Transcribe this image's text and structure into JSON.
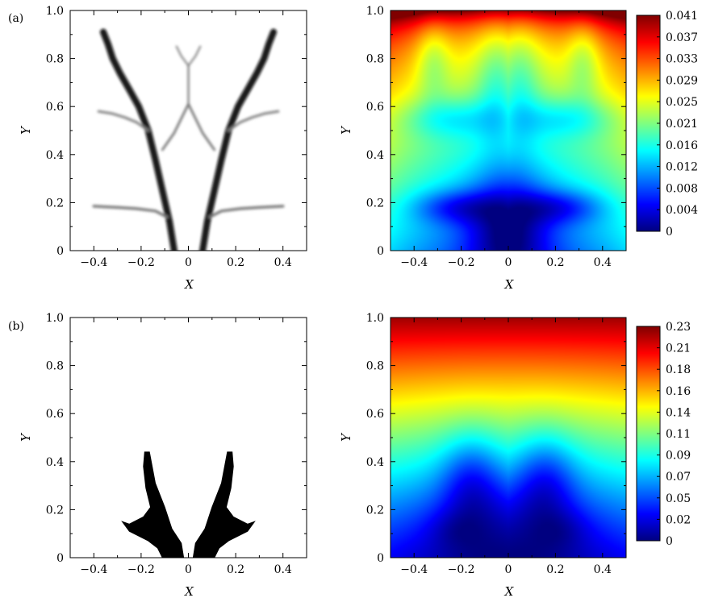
{
  "chart_data": [
    {
      "panel": "(a)",
      "type": "heatmap",
      "subtype": "topology-density",
      "xlabel": "X",
      "ylabel": "Y",
      "xlim": [
        -0.5,
        0.5
      ],
      "ylim": [
        0,
        1
      ],
      "xticks": [
        "−0.4",
        "−0.2",
        "0",
        "0.2",
        "0.4"
      ],
      "yticks": [
        "0",
        "0.2",
        "0.4",
        "0.6",
        "0.8",
        "1.0"
      ],
      "colormap": "grayscale",
      "branches": [
        {
          "x": [
            -0.06,
            -0.08,
            -0.11,
            -0.14,
            -0.17,
            -0.21,
            -0.25,
            -0.29,
            -0.32,
            -0.34,
            -0.36
          ],
          "y": [
            0,
            0.12,
            0.25,
            0.38,
            0.5,
            0.6,
            0.67,
            0.74,
            0.8,
            0.86,
            0.91
          ],
          "w": 0.028,
          "d": 0.95
        },
        {
          "x": [
            0.06,
            0.08,
            0.11,
            0.14,
            0.17,
            0.21,
            0.25,
            0.29,
            0.32,
            0.34,
            0.36
          ],
          "y": [
            0,
            0.12,
            0.25,
            0.38,
            0.5,
            0.6,
            0.67,
            0.74,
            0.8,
            0.86,
            0.91
          ],
          "w": 0.028,
          "d": 0.95
        },
        {
          "x": [
            -0.09,
            -0.14,
            -0.22,
            -0.3,
            -0.4
          ],
          "y": [
            0.14,
            0.165,
            0.175,
            0.18,
            0.185
          ],
          "w": 0.012,
          "d": 0.55
        },
        {
          "x": [
            0.09,
            0.14,
            0.22,
            0.3,
            0.4
          ],
          "y": [
            0.14,
            0.165,
            0.175,
            0.18,
            0.185
          ],
          "w": 0.012,
          "d": 0.55
        },
        {
          "x": [
            -0.17,
            -0.22,
            -0.27,
            -0.32,
            -0.38
          ],
          "y": [
            0.5,
            0.535,
            0.555,
            0.57,
            0.58
          ],
          "w": 0.011,
          "d": 0.5
        },
        {
          "x": [
            0.17,
            0.22,
            0.27,
            0.32,
            0.38
          ],
          "y": [
            0.5,
            0.535,
            0.555,
            0.57,
            0.58
          ],
          "w": 0.011,
          "d": 0.5
        },
        {
          "x": [
            -0.11,
            -0.06,
            -0.02,
            0.0
          ],
          "y": [
            0.42,
            0.49,
            0.57,
            0.61
          ],
          "w": 0.01,
          "d": 0.55
        },
        {
          "x": [
            0.11,
            0.06,
            0.02,
            0.0
          ],
          "y": [
            0.42,
            0.49,
            0.57,
            0.61
          ],
          "w": 0.01,
          "d": 0.55
        },
        {
          "x": [
            0.0,
            0.0,
            0.0
          ],
          "y": [
            0.61,
            0.69,
            0.77
          ],
          "w": 0.009,
          "d": 0.5
        },
        {
          "x": [
            0.0,
            -0.03,
            -0.05
          ],
          "y": [
            0.77,
            0.81,
            0.85
          ],
          "w": 0.008,
          "d": 0.5
        },
        {
          "x": [
            0.0,
            0.03,
            0.05
          ],
          "y": [
            0.77,
            0.81,
            0.85
          ],
          "w": 0.008,
          "d": 0.5
        }
      ]
    },
    {
      "panel": "(a)",
      "type": "heatmap",
      "subtype": "field-contour",
      "xlabel": "X",
      "ylabel": "Y",
      "xlim": [
        -0.5,
        0.5
      ],
      "ylim": [
        0,
        1
      ],
      "xticks": [
        "−0.4",
        "−0.2",
        "0",
        "0.2",
        "0.4"
      ],
      "yticks": [
        "0",
        "0.2",
        "0.4",
        "0.6",
        "0.8",
        "1.0"
      ],
      "colormap": "jet",
      "colorbar_labels": [
        "0.041",
        "0.037",
        "0.033",
        "0.029",
        "0.025",
        "0.021",
        "0.016",
        "0.012",
        "0.008",
        "0.004",
        "0"
      ],
      "zlim": [
        0,
        0.041
      ]
    },
    {
      "panel": "(b)",
      "type": "heatmap",
      "subtype": "topology-density",
      "xlabel": "X",
      "ylabel": "Y",
      "xlim": [
        -0.5,
        0.5
      ],
      "ylim": [
        0,
        1
      ],
      "xticks": [
        "−0.4",
        "−0.2",
        "0",
        "0.2",
        "0.4"
      ],
      "yticks": [
        "0",
        "0.2",
        "0.4",
        "0.6",
        "0.8",
        "1.0"
      ],
      "colormap": "binary",
      "shapes": [
        {
          "points": [
            [
              -0.02,
              0
            ],
            [
              -0.03,
              0.06
            ],
            [
              -0.07,
              0.12
            ],
            [
              -0.1,
              0.21
            ],
            [
              -0.14,
              0.31
            ],
            [
              -0.165,
              0.44
            ],
            [
              -0.185,
              0.44
            ],
            [
              -0.19,
              0.38
            ],
            [
              -0.18,
              0.29
            ],
            [
              -0.16,
              0.21
            ],
            [
              -0.19,
              0.17
            ],
            [
              -0.25,
              0.14
            ],
            [
              -0.28,
              0.15
            ],
            [
              -0.25,
              0.11
            ],
            [
              -0.17,
              0.07
            ],
            [
              -0.13,
              0.04
            ],
            [
              -0.11,
              0
            ]
          ]
        },
        {
          "points": [
            [
              0.02,
              0
            ],
            [
              0.03,
              0.06
            ],
            [
              0.07,
              0.12
            ],
            [
              0.1,
              0.21
            ],
            [
              0.14,
              0.31
            ],
            [
              0.165,
              0.44
            ],
            [
              0.185,
              0.44
            ],
            [
              0.19,
              0.38
            ],
            [
              0.18,
              0.29
            ],
            [
              0.16,
              0.21
            ],
            [
              0.19,
              0.17
            ],
            [
              0.25,
              0.14
            ],
            [
              0.28,
              0.15
            ],
            [
              0.25,
              0.11
            ],
            [
              0.17,
              0.07
            ],
            [
              0.13,
              0.04
            ],
            [
              0.11,
              0
            ]
          ]
        }
      ]
    },
    {
      "panel": "(b)",
      "type": "heatmap",
      "subtype": "field-contour",
      "xlabel": "X",
      "ylabel": "Y",
      "xlim": [
        -0.5,
        0.5
      ],
      "ylim": [
        0,
        1
      ],
      "xticks": [
        "−0.4",
        "−0.2",
        "0",
        "0.2",
        "0.4"
      ],
      "yticks": [
        "0",
        "0.2",
        "0.4",
        "0.6",
        "0.8",
        "1.0"
      ],
      "colormap": "jet",
      "colorbar_labels": [
        "0.23",
        "0.21",
        "0.18",
        "0.16",
        "0.14",
        "0.11",
        "0.09",
        "0.07",
        "0.05",
        "0.02",
        "0"
      ],
      "zlim": [
        0,
        0.23
      ]
    }
  ],
  "panel_tags": [
    "(a)",
    "(b)"
  ]
}
